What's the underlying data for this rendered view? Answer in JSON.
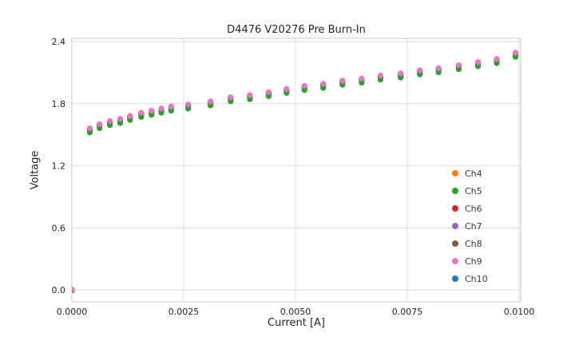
{
  "style": {
    "grid_color": "#dcdcdc",
    "border_color": "#cccccc",
    "text_color": "#262626",
    "background": "#ffffff"
  },
  "chart_data": {
    "type": "scatter",
    "title": "D4476 V20276 Pre Burn-In",
    "xlabel": "Current [A]",
    "ylabel": "Voltage",
    "xlim": [
      0.0,
      0.010036
    ],
    "ylim": [
      -0.1157,
      2.431
    ],
    "xticks": [
      0.0,
      0.0025,
      0.005,
      0.0075,
      0.01
    ],
    "xtick_labels": [
      "0.0000",
      "0.0025",
      "0.0050",
      "0.0075",
      "0.0100"
    ],
    "yticks": [
      0.0,
      0.6,
      1.2,
      1.8,
      2.4
    ],
    "ytick_labels": [
      "0.0",
      "0.6",
      "1.2",
      "1.8",
      "2.4"
    ],
    "grid": true,
    "legend_position": "lower right",
    "marker_radius": 3.6,
    "x": [
      0.0,
      0.0004,
      0.00062,
      0.00085,
      0.00108,
      0.0013,
      0.00155,
      0.00178,
      0.002,
      0.00222,
      0.0026,
      0.0031,
      0.00355,
      0.00398,
      0.0044,
      0.0048,
      0.0052,
      0.00562,
      0.00605,
      0.00648,
      0.0069,
      0.00735,
      0.00778,
      0.0082,
      0.00865,
      0.00908,
      0.0095,
      0.00992
    ],
    "voltage": [
      0.0,
      1.55,
      1.59,
      1.62,
      1.64,
      1.67,
      1.7,
      1.72,
      1.74,
      1.76,
      1.78,
      1.81,
      1.85,
      1.87,
      1.9,
      1.93,
      1.96,
      1.98,
      2.01,
      2.03,
      2.06,
      2.08,
      2.11,
      2.13,
      2.16,
      2.19,
      2.22,
      2.28
    ],
    "series": [
      {
        "name": "Ch4",
        "color": "#ff7f0e",
        "dv_offset": 0.004
      },
      {
        "name": "Ch5",
        "color": "#2ca02c",
        "dv_offset": -0.028
      },
      {
        "name": "Ch6",
        "color": "#d62728",
        "dv_offset": 0.0
      },
      {
        "name": "Ch7",
        "color": "#9467bd",
        "dv_offset": 0.008
      },
      {
        "name": "Ch8",
        "color": "#8c564b",
        "dv_offset": -0.01
      },
      {
        "name": "Ch9",
        "color": "#e377c2",
        "dv_offset": 0.012
      },
      {
        "name": "Ch10",
        "color": "#1f77b4",
        "dv_offset": -0.004
      }
    ],
    "draw_order": [
      6,
      0,
      2,
      4,
      3,
      1,
      5
    ]
  }
}
